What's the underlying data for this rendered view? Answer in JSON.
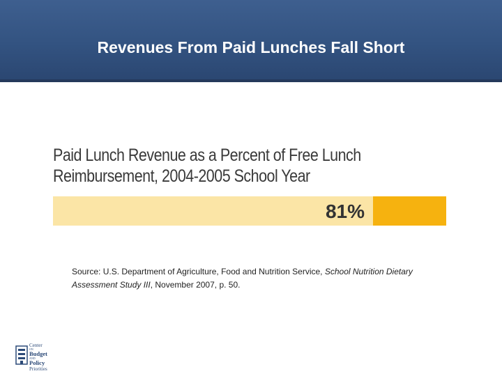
{
  "header": {
    "title": "Revenues From Paid Lunches Fall Short"
  },
  "chart_data": {
    "type": "bar",
    "title_lines": [
      "Paid Lunch Revenue as a Percent of Free Lunch",
      "Reimbursement, 2004-2005 School Year"
    ],
    "categories": [
      ""
    ],
    "values": [
      81
    ],
    "value_label": "81%",
    "xlim": [
      0,
      100
    ],
    "colors": {
      "bar": "#fbe5a6",
      "remainder": "#f6b20f",
      "label": "#333333"
    }
  },
  "source": {
    "prefix": "Source: U.S. Department of Agriculture, Food and Nutrition Service, ",
    "italic": "School Nutrition Dietary Assessment Study III",
    "suffix": ", November 2007, p. 50."
  },
  "logo": {
    "lines": [
      "Center",
      "Budget",
      "Policy",
      "Priorities"
    ],
    "small_words": [
      "ON",
      "AND"
    ]
  }
}
